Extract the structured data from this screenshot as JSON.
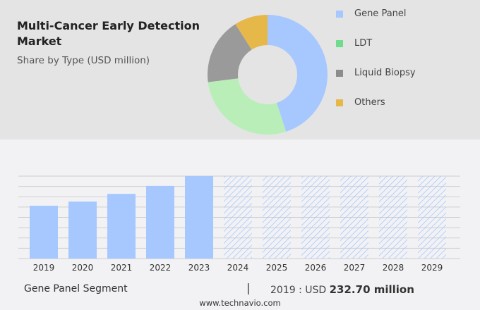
{
  "title": "Multi-Cancer Early Detection Market",
  "subtitle": "Share by Type (USD million)",
  "footer": {
    "segment": "Gene Panel Segment",
    "separator": "|",
    "value_prefix": "2019 : USD",
    "value": "232.70 million",
    "website": "www.technavio.com"
  },
  "chart_data": [
    {
      "type": "pie",
      "subtype": "donut",
      "legend_position": "right",
      "categories": [
        "Gene Panel",
        "LDT",
        "Liquid Biopsy",
        "Others"
      ],
      "values": [
        45,
        28,
        18,
        9
      ],
      "colors": [
        "#a6c8ff",
        "#b9eeb9",
        "#9a9a9a",
        "#e6b84a"
      ],
      "legend_colors": [
        "#a6c8ff",
        "#6fdc8c",
        "#8c8c8c",
        "#e6b84a"
      ]
    },
    {
      "type": "bar",
      "categories": [
        "2019",
        "2020",
        "2021",
        "2022",
        "2023",
        "2024",
        "2025",
        "2026",
        "2027",
        "2028",
        "2029"
      ],
      "values": [
        232.7,
        251,
        285,
        320,
        363,
        null,
        null,
        null,
        null,
        null,
        null
      ],
      "forecast_years": [
        "2024",
        "2025",
        "2026",
        "2027",
        "2028",
        "2029"
      ],
      "forecast_style": "hatched",
      "color": "#a6c8ff",
      "grid": true,
      "ylim": [
        0,
        363
      ]
    }
  ]
}
